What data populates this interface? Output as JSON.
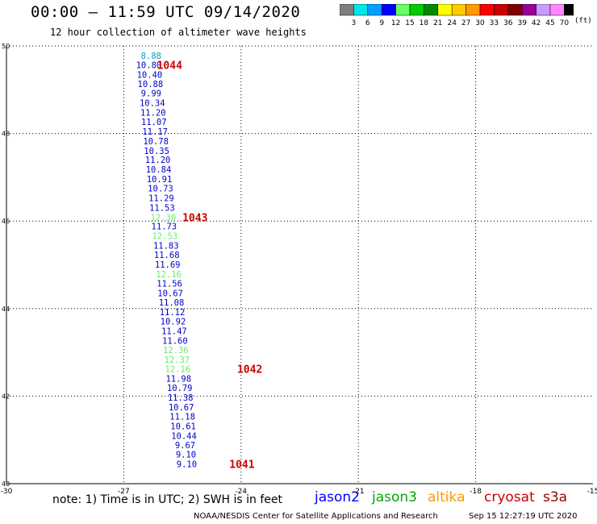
{
  "header": {
    "title": "00:00 – 11:59 UTC 09/14/2020",
    "subtitle": "12 hour collection of altimeter wave heights"
  },
  "colorbar": {
    "unit": "(ft)",
    "labels": [
      "3",
      "6",
      "9",
      "12",
      "15",
      "18",
      "21",
      "24",
      "27",
      "30",
      "33",
      "36",
      "39",
      "42",
      "45",
      "70"
    ],
    "colors": [
      "#7f7f7f",
      "#00e6e6",
      "#00a0ff",
      "#0000ff",
      "#66ff66",
      "#00cc00",
      "#008800",
      "#ffff00",
      "#ffcc00",
      "#ff9900",
      "#ff0000",
      "#cc0000",
      "#800000",
      "#990099",
      "#cc99ff",
      "#ff88ff",
      "#000000"
    ]
  },
  "footer": {
    "note": "note: 1) Time is in UTC; 2) SWH is in feet",
    "credit": "NOAA/NESDIS Center for Satellite Applications and Research",
    "timestamp": "Sep 15 12:27:19 UTC 2020"
  },
  "satellites": [
    {
      "name": "jason2",
      "color": "#0000ff"
    },
    {
      "name": "jason3",
      "color": "#00aa00"
    },
    {
      "name": "altika",
      "color": "#ff9900"
    },
    {
      "name": "cryosat",
      "color": "#cc0000"
    },
    {
      "name": "s3a",
      "color": "#990000"
    }
  ],
  "chart_data": {
    "type": "scatter",
    "xlim": [
      -30,
      -15
    ],
    "ylim": [
      40,
      50
    ],
    "x_ticks": [
      "-30",
      "-27",
      "-24",
      "-21",
      "-18",
      "-15"
    ],
    "y_ticks": [
      "40",
      "42",
      "44",
      "46",
      "48",
      "50"
    ],
    "grid": true,
    "points": [
      {
        "x": -26.3,
        "y": 49.78,
        "label": "8.88",
        "color": "#00a0cc"
      },
      {
        "x": -26.36,
        "y": 49.57,
        "label": "10.80",
        "color": "#0000cc"
      },
      {
        "x": -26.34,
        "y": 49.35,
        "label": "10.40",
        "color": "#0000cc"
      },
      {
        "x": -26.32,
        "y": 49.13,
        "label": "10.88",
        "color": "#0000cc"
      },
      {
        "x": -26.3,
        "y": 48.92,
        "label": "9.99",
        "color": "#0000cc"
      },
      {
        "x": -26.27,
        "y": 48.7,
        "label": "10.34",
        "color": "#0000cc"
      },
      {
        "x": -26.25,
        "y": 48.48,
        "label": "11.20",
        "color": "#0000cc"
      },
      {
        "x": -26.23,
        "y": 48.27,
        "label": "11.07",
        "color": "#0000cc"
      },
      {
        "x": -26.2,
        "y": 48.05,
        "label": "11.17",
        "color": "#0000cc"
      },
      {
        "x": -26.18,
        "y": 47.83,
        "label": "10.78",
        "color": "#0000cc"
      },
      {
        "x": -26.16,
        "y": 47.61,
        "label": "10.35",
        "color": "#0000cc"
      },
      {
        "x": -26.13,
        "y": 47.4,
        "label": "11.20",
        "color": "#0000cc"
      },
      {
        "x": -26.11,
        "y": 47.18,
        "label": "10.84",
        "color": "#0000cc"
      },
      {
        "x": -26.09,
        "y": 46.96,
        "label": "10.91",
        "color": "#0000cc"
      },
      {
        "x": -26.06,
        "y": 46.75,
        "label": "10.73",
        "color": "#0000cc"
      },
      {
        "x": -26.04,
        "y": 46.53,
        "label": "11.29",
        "color": "#0000cc"
      },
      {
        "x": -26.02,
        "y": 46.31,
        "label": "11.53",
        "color": "#0000cc"
      },
      {
        "x": -25.99,
        "y": 46.09,
        "label": "12.30",
        "color": "#66ee66"
      },
      {
        "x": -25.97,
        "y": 45.88,
        "label": "11.73",
        "color": "#0000cc"
      },
      {
        "x": -25.95,
        "y": 45.66,
        "label": "12.53",
        "color": "#66ee66"
      },
      {
        "x": -25.92,
        "y": 45.44,
        "label": "11.83",
        "color": "#0000cc"
      },
      {
        "x": -25.9,
        "y": 45.23,
        "label": "11.68",
        "color": "#0000cc"
      },
      {
        "x": -25.88,
        "y": 45.01,
        "label": "11.69",
        "color": "#0000cc"
      },
      {
        "x": -25.85,
        "y": 44.79,
        "label": "12.16",
        "color": "#66ee66"
      },
      {
        "x": -25.83,
        "y": 44.58,
        "label": "11.56",
        "color": "#0000cc"
      },
      {
        "x": -25.81,
        "y": 44.36,
        "label": "10.67",
        "color": "#0000cc"
      },
      {
        "x": -25.78,
        "y": 44.14,
        "label": "11.08",
        "color": "#0000cc"
      },
      {
        "x": -25.76,
        "y": 43.92,
        "label": "11.12",
        "color": "#0000cc"
      },
      {
        "x": -25.74,
        "y": 43.71,
        "label": "10.92",
        "color": "#0000cc"
      },
      {
        "x": -25.71,
        "y": 43.49,
        "label": "11.47",
        "color": "#0000cc"
      },
      {
        "x": -25.69,
        "y": 43.27,
        "label": "11.60",
        "color": "#0000cc"
      },
      {
        "x": -25.67,
        "y": 43.06,
        "label": "12.36",
        "color": "#66ee66"
      },
      {
        "x": -25.64,
        "y": 42.84,
        "label": "12.37",
        "color": "#66ee66"
      },
      {
        "x": -25.62,
        "y": 42.62,
        "label": "12.16",
        "color": "#66ee66"
      },
      {
        "x": -25.6,
        "y": 42.4,
        "label": "11.98",
        "color": "#0000cc"
      },
      {
        "x": -25.57,
        "y": 42.19,
        "label": "10.79",
        "color": "#0000cc"
      },
      {
        "x": -25.55,
        "y": 41.97,
        "label": "11.38",
        "color": "#0000cc"
      },
      {
        "x": -25.53,
        "y": 41.75,
        "label": "10.67",
        "color": "#0000cc"
      },
      {
        "x": -25.5,
        "y": 41.54,
        "label": "11.18",
        "color": "#0000cc"
      },
      {
        "x": -25.48,
        "y": 41.32,
        "label": "10.61",
        "color": "#0000cc"
      },
      {
        "x": -25.46,
        "y": 41.1,
        "label": "10.44",
        "color": "#0000cc"
      },
      {
        "x": -25.43,
        "y": 40.88,
        "label": "9.67",
        "color": "#0000cc"
      },
      {
        "x": -25.41,
        "y": 40.67,
        "label": "9.10",
        "color": "#0000cc"
      },
      {
        "x": -25.39,
        "y": 40.45,
        "label": "9.10",
        "color": "#0000cc"
      }
    ],
    "time_annotations": [
      {
        "x": -26.15,
        "y": 49.57,
        "label": "1044",
        "color": "#cc0000"
      },
      {
        "x": -25.5,
        "y": 46.09,
        "label": "1043",
        "color": "#cc0000"
      },
      {
        "x": -24.1,
        "y": 42.62,
        "label": "1042",
        "color": "#cc0000"
      },
      {
        "x": -24.3,
        "y": 40.45,
        "label": "1041",
        "color": "#cc0000"
      }
    ]
  }
}
